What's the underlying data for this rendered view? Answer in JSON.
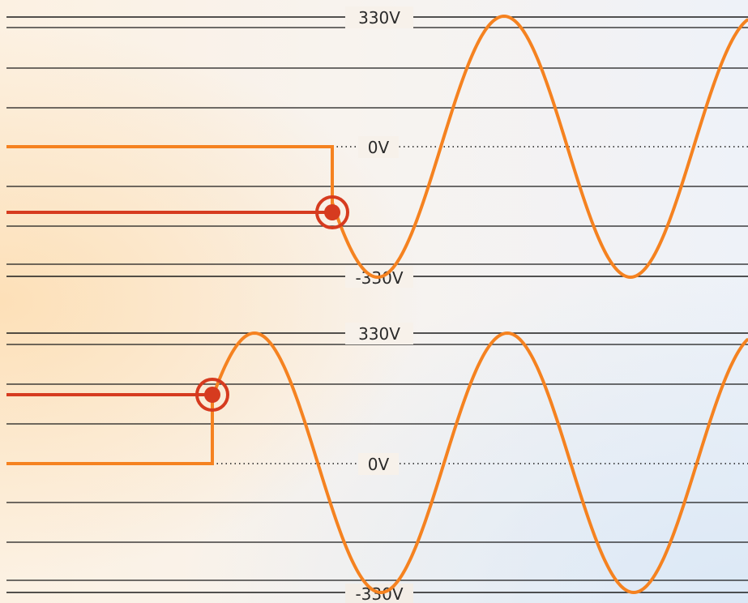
{
  "panels": [
    {
      "id": "top",
      "labels": {
        "max": "330V",
        "zero": "0V",
        "min": "-330V"
      }
    },
    {
      "id": "bottom",
      "labels": {
        "max": "330V",
        "zero": "0V",
        "min": "-330V"
      }
    }
  ],
  "colors": {
    "sine_wave": "#f58220",
    "switch_line": "#f58220",
    "trigger_line": "#d63b1f",
    "trigger_marker": "#d63b1f",
    "grid_line": "#1a1a1a",
    "zero_line": "#1a1a1a"
  },
  "icons": {
    "trigger_marker": "target-dot-icon"
  }
}
